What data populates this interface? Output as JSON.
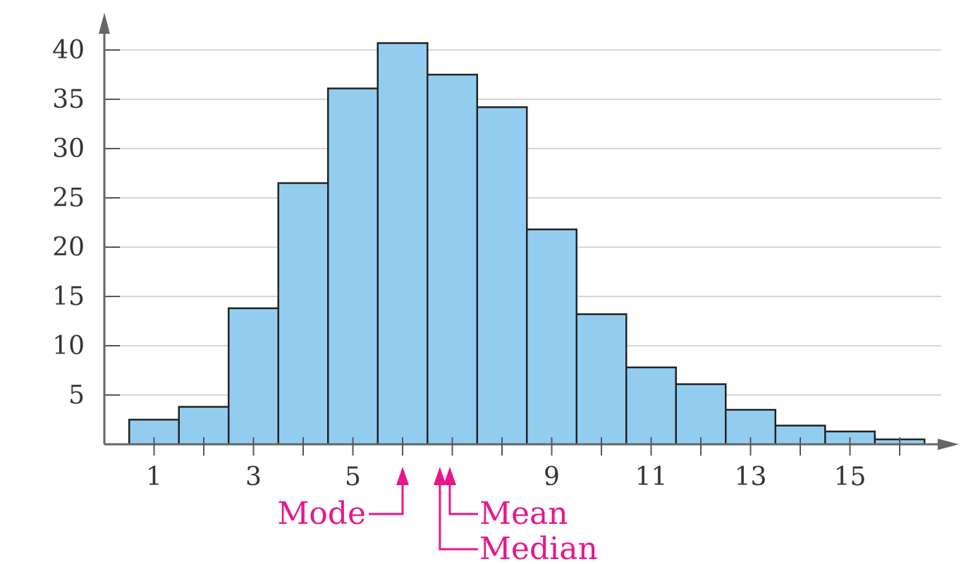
{
  "chart_data": {
    "type": "bar",
    "title": "",
    "xlabel": "",
    "ylabel": "",
    "x": [
      1,
      2,
      3,
      4,
      5,
      6,
      7,
      8,
      9,
      10,
      11,
      12,
      13,
      14,
      15,
      16
    ],
    "values": [
      2.5,
      3.8,
      13.8,
      26.5,
      36.1,
      40.7,
      37.5,
      34.2,
      21.8,
      13.2,
      7.8,
      6.1,
      3.5,
      1.9,
      1.3,
      0.5
    ],
    "xlim": [
      0,
      17.5
    ],
    "ylim": [
      0,
      40
    ],
    "y_ticks": [
      "5",
      "10",
      "15",
      "20",
      "25",
      "30",
      "35",
      "40"
    ],
    "x_tick_labels": [
      "1",
      "3",
      "5",
      "9",
      "11",
      "13",
      "15"
    ],
    "grid": "horizontal",
    "bar_color": "#92cdf0",
    "bar_edge_color": "#222222",
    "grid_color": "#c8c8c8",
    "annotation_color": "#e8168b",
    "annotations": [
      {
        "label": "Mode",
        "x": 6.0
      },
      {
        "label": "Median",
        "x": 6.75
      },
      {
        "label": "Mean",
        "x": 6.95
      }
    ]
  }
}
